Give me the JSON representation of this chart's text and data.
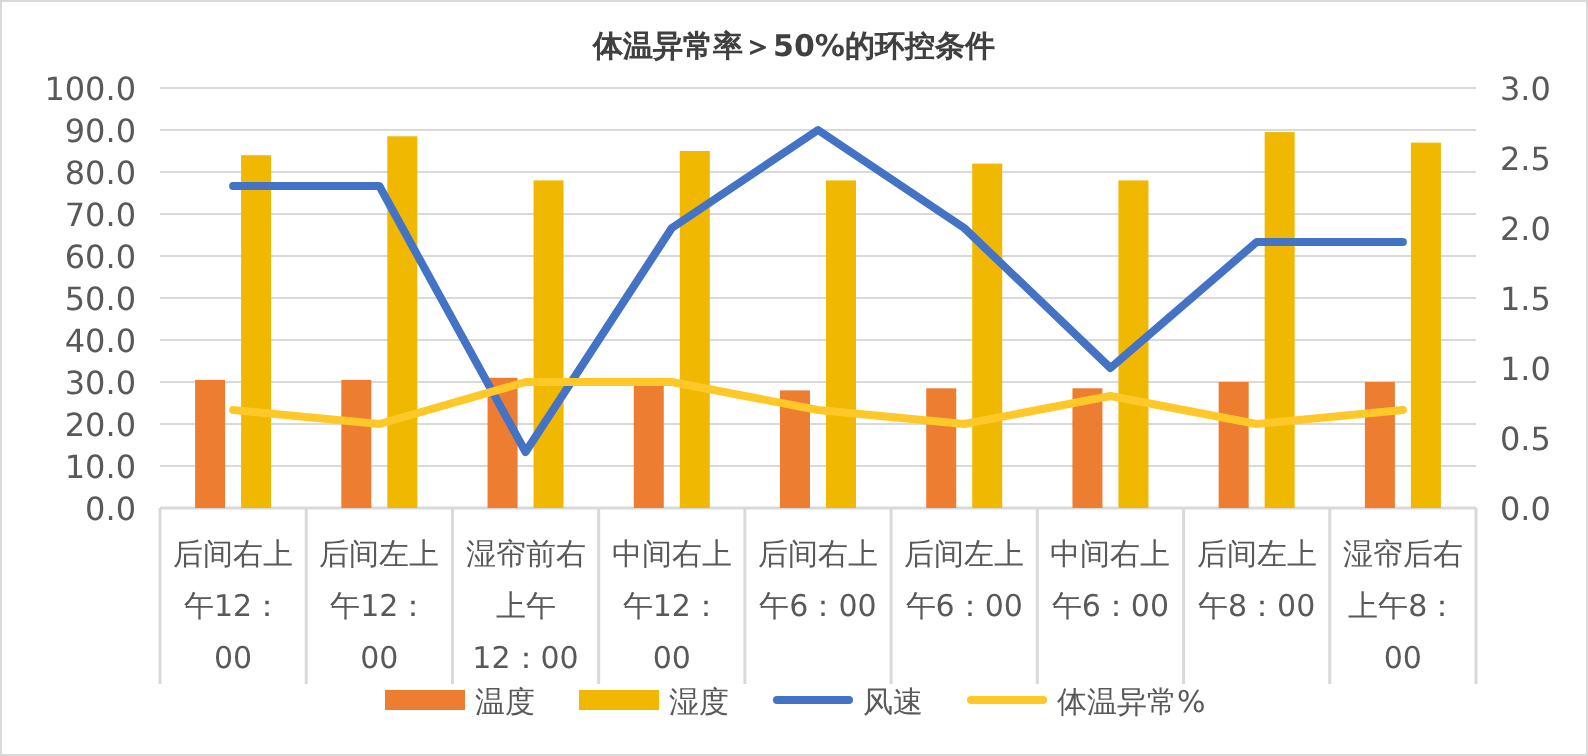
{
  "chart_data": {
    "type": "bar",
    "title": "体温异常率＞50%的环控条件",
    "categories": [
      "后间右上午12：00",
      "后间左上午12：00",
      "湿帘前右上午12：00",
      "中间右上午12：00",
      "后间右上午6：00",
      "后间左上午6：00",
      "中间右上午6：00",
      "后间左上午8：00",
      "湿帘后右上午8：00"
    ],
    "series": [
      {
        "name": "温度",
        "color": "#ed7d31",
        "values": [
          30.5,
          30.5,
          31,
          30,
          28,
          28.5,
          28.5,
          30,
          30
        ]
      },
      {
        "name": "湿度",
        "color": "#f0b800",
        "values": [
          84,
          88.5,
          78,
          85,
          78,
          82,
          78,
          89.5,
          87
        ]
      },
      {
        "name": "风速",
        "type": "line",
        "axis": "y2",
        "color": "#4472c4",
        "values": [
          2.3,
          2.3,
          0.4,
          2.0,
          2.7,
          2.0,
          1.0,
          1.9,
          1.9
        ]
      },
      {
        "name": "体温异常%",
        "type": "line",
        "axis": "y2",
        "color": "#ffc829",
        "values": [
          0.7,
          0.6,
          0.9,
          0.9,
          0.7,
          0.6,
          0.8,
          0.6,
          0.7
        ]
      }
    ],
    "ylim": [
      0,
      100
    ],
    "yticks": [
      {
        "value": 0,
        "label": "0.0"
      },
      {
        "value": 10,
        "label": "10.0"
      },
      {
        "value": 20,
        "label": "20.0"
      },
      {
        "value": 30,
        "label": "30.0"
      },
      {
        "value": 40,
        "label": "40.0"
      },
      {
        "value": 50,
        "label": "50.0"
      },
      {
        "value": 60,
        "label": "60.0"
      },
      {
        "value": 70,
        "label": "70.0"
      },
      {
        "value": 80,
        "label": "80.0"
      },
      {
        "value": 90,
        "label": "90.0"
      },
      {
        "value": 100,
        "label": "100.0"
      }
    ],
    "y2lim": [
      0,
      3
    ],
    "y2ticks": [
      {
        "value": 0,
        "label": "0.0"
      },
      {
        "value": 0.5,
        "label": "0.5"
      },
      {
        "value": 1,
        "label": "1.0"
      },
      {
        "value": 1.5,
        "label": "1.5"
      },
      {
        "value": 2,
        "label": "2.0"
      },
      {
        "value": 2.5,
        "label": "2.5"
      },
      {
        "value": 3,
        "label": "3.0"
      }
    ],
    "grid": "y",
    "legend": "bottom"
  }
}
